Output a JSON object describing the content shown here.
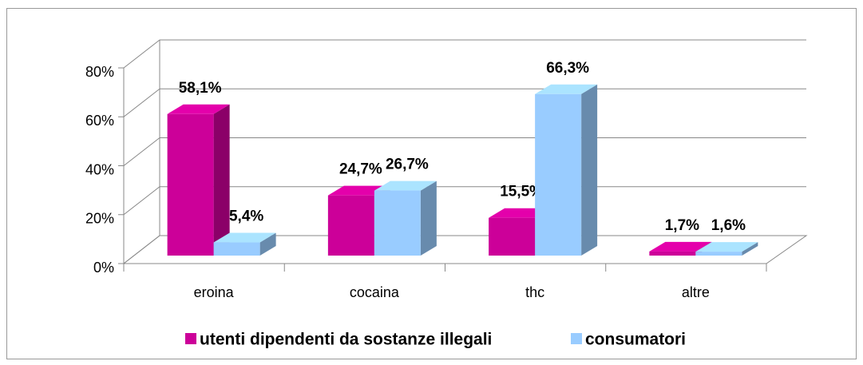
{
  "chart_data": {
    "type": "bar3d",
    "categories": [
      "eroina",
      "cocaina",
      "thc",
      "altre"
    ],
    "series": [
      {
        "name": "utenti dipendenti da sostanze illegali",
        "color": "#cc0099",
        "values": [
          58.1,
          24.7,
          15.5,
          1.7
        ],
        "value_labels": [
          "58,1%",
          "24,7%",
          "15,5%",
          "1,7%"
        ]
      },
      {
        "name": "consumatori",
        "color": "#99ccff",
        "values": [
          5.4,
          26.7,
          66.3,
          1.6
        ],
        "value_labels": [
          "5,4%",
          "26,7%",
          "66,3%",
          "1,6%"
        ]
      }
    ],
    "ylim": [
      0,
      80
    ],
    "yticks": [
      {
        "value": 0,
        "label": "0%"
      },
      {
        "value": 20,
        "label": "20%"
      },
      {
        "value": 40,
        "label": "40%"
      },
      {
        "value": 60,
        "label": "60%"
      },
      {
        "value": 80,
        "label": "80%"
      }
    ],
    "grid": true,
    "legend": "bottom"
  }
}
